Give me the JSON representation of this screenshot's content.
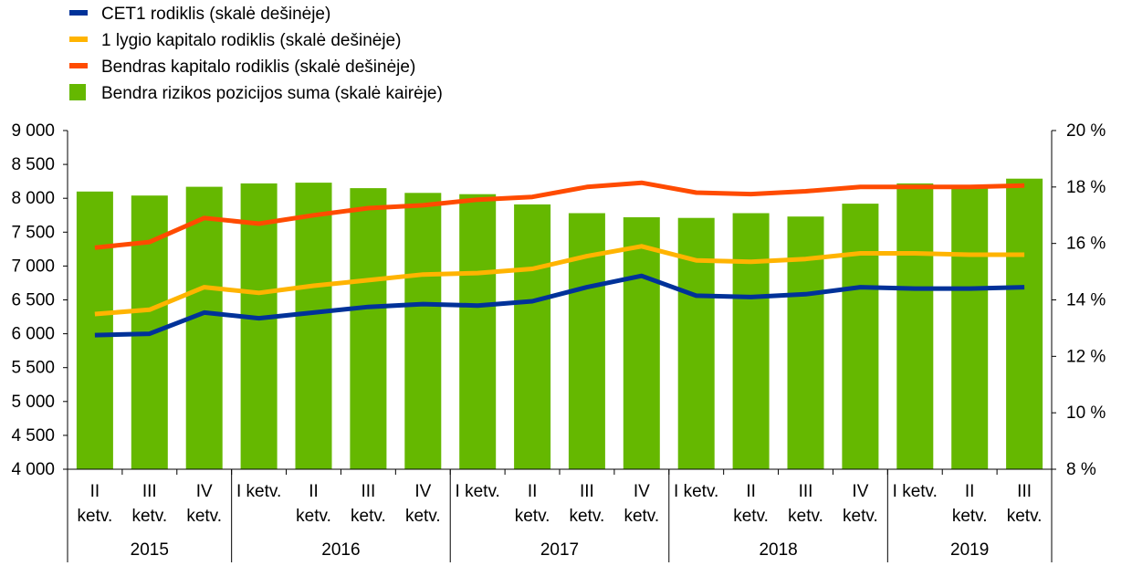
{
  "chart_data": {
    "type": "bar+line",
    "legend_position": "top-left",
    "grid": false,
    "legend": [
      {
        "label": "CET1 rodiklis (skalė dešinėje)",
        "color": "#003299",
        "kind": "line"
      },
      {
        "label": "1 lygio kapitalo rodiklis (skalė dešinėje)",
        "color": "#FFB400",
        "kind": "line"
      },
      {
        "label": "Bendras kapitalo rodiklis (skalė dešinėje)",
        "color": "#FF4B00",
        "kind": "line"
      },
      {
        "label": "Bendra rizikos pozicijos suma (skalė kairėje)",
        "color": "#65B800",
        "kind": "bar"
      }
    ],
    "categories": [
      [
        "II",
        "ketv."
      ],
      [
        "III",
        "ketv."
      ],
      [
        "IV",
        "ketv."
      ],
      [
        "I ketv."
      ],
      [
        "II",
        "ketv."
      ],
      [
        "III",
        "ketv."
      ],
      [
        "IV",
        "ketv."
      ],
      [
        "I ketv."
      ],
      [
        "II",
        "ketv."
      ],
      [
        "III",
        "ketv."
      ],
      [
        "IV",
        "ketv."
      ],
      [
        "I ketv."
      ],
      [
        "II",
        "ketv."
      ],
      [
        "III",
        "ketv."
      ],
      [
        "IV",
        "ketv."
      ],
      [
        "I ketv."
      ],
      [
        "II",
        "ketv."
      ],
      [
        "III",
        "ketv."
      ]
    ],
    "years": [
      {
        "label": "2015",
        "count": 3
      },
      {
        "label": "2016",
        "count": 4
      },
      {
        "label": "2017",
        "count": 4
      },
      {
        "label": "2018",
        "count": 4
      },
      {
        "label": "2019",
        "count": 3
      }
    ],
    "left_axis": {
      "min": 4000,
      "max": 9000,
      "step": 500,
      "tick_labels": [
        "4 000",
        "4 500",
        "5 000",
        "5 500",
        "6 000",
        "6 500",
        "7 000",
        "7 500",
        "8 000",
        "8 500",
        "9 000"
      ]
    },
    "right_axis": {
      "min": 8,
      "max": 20,
      "step": 2,
      "tick_labels": [
        "8 %",
        "10 %",
        "12 %",
        "14 %",
        "16 %",
        "18 %",
        "20 %"
      ]
    },
    "bars": {
      "name": "Bendra rizikos pozicijos suma (skalė kairėje)",
      "axis": "left",
      "color": "#65B800",
      "values": [
        8100,
        8040,
        8170,
        8220,
        8230,
        8150,
        8080,
        8060,
        7910,
        7780,
        7720,
        7710,
        7780,
        7730,
        7920,
        8220,
        8160,
        8290
      ]
    },
    "series": [
      {
        "name": "CET1 rodiklis (skalė dešinėje)",
        "axis": "right",
        "color": "#003299",
        "values": [
          12.75,
          12.8,
          13.55,
          13.35,
          13.55,
          13.75,
          13.85,
          13.8,
          13.95,
          14.45,
          14.85,
          14.15,
          14.1,
          14.2,
          14.45,
          14.4,
          14.4,
          14.45
        ]
      },
      {
        "name": "1 lygio kapitalo rodiklis (skalė dešinėje)",
        "axis": "right",
        "color": "#FFB400",
        "values": [
          13.5,
          13.65,
          14.45,
          14.25,
          14.5,
          14.7,
          14.9,
          14.95,
          15.1,
          15.55,
          15.9,
          15.4,
          15.35,
          15.45,
          15.65,
          15.65,
          15.6,
          15.6
        ]
      },
      {
        "name": "Bendras kapitalo rodiklis (skalė dešinėje)",
        "axis": "right",
        "color": "#FF4B00",
        "values": [
          15.85,
          16.05,
          16.9,
          16.7,
          17.0,
          17.25,
          17.35,
          17.55,
          17.65,
          18.0,
          18.15,
          17.8,
          17.75,
          17.85,
          18.0,
          18.0,
          18.0,
          18.05
        ]
      }
    ]
  }
}
